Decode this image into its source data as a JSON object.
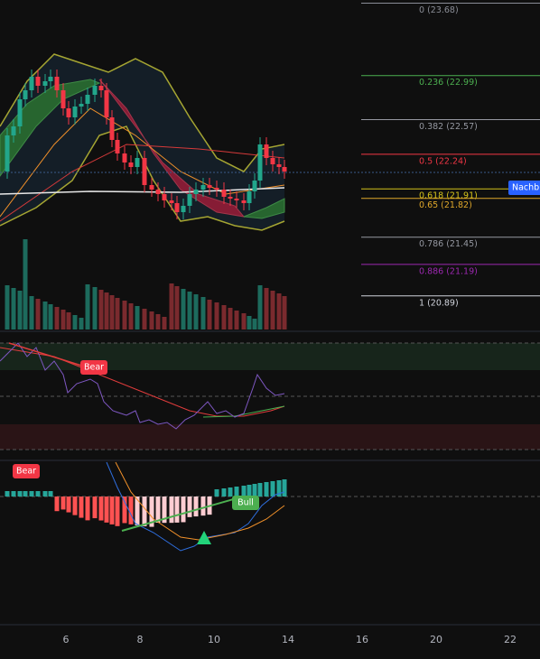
{
  "fib_levels": [
    {
      "value": 23.68,
      "label": "0 (23.68)",
      "color": "#8a8d96"
    },
    {
      "value": 22.99,
      "label": "0.236 (22.99)",
      "color": "#4caf50"
    },
    {
      "value": 22.57,
      "label": "0.382 (22.57)",
      "color": "#9598a1"
    },
    {
      "value": 22.24,
      "label": "0.5 (22.24)",
      "color": "#f23645"
    },
    {
      "value": 21.91,
      "label": "0.618 (21.91)",
      "color": "#d4c21a"
    },
    {
      "value": 21.82,
      "label": "0.65 (21.82)",
      "color": "#e0a82a"
    },
    {
      "value": 21.45,
      "label": "0.786 (21.45)",
      "color": "#9598a1"
    },
    {
      "value": 21.19,
      "label": "0.886 (21.19)",
      "color": "#9c27b0"
    },
    {
      "value": 20.89,
      "label": "1 (20.89)",
      "color": "#d1d4dc"
    }
  ],
  "price_ylim": [
    20.57,
    23.71
  ],
  "price_tag": "Nachb",
  "x_axis": [
    "6",
    "8",
    "10",
    "14",
    "16",
    "20",
    "22"
  ],
  "signals": [
    "Bear",
    "Bear",
    "Bull"
  ]
}
